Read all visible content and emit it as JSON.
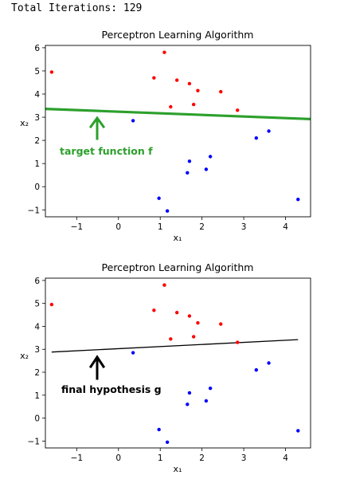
{
  "header": {
    "iterations_text": "Total Iterations: 129"
  },
  "chart_data": [
    {
      "type": "scatter",
      "title": "Perceptron Learning Algorithm",
      "xlabel": "x₁",
      "ylabel": "x₂",
      "xlim": [
        -1.75,
        4.6
      ],
      "ylim": [
        -1.3,
        6.1
      ],
      "xticks": [
        -1,
        0,
        1,
        2,
        3,
        4
      ],
      "yticks": [
        -1,
        0,
        1,
        2,
        3,
        4,
        5,
        6
      ],
      "series": [
        {
          "color": "#ff0000",
          "points": [
            [
              -1.6,
              4.95
            ],
            [
              1.1,
              5.8
            ],
            [
              0.85,
              4.7
            ],
            [
              1.4,
              4.6
            ],
            [
              1.7,
              4.45
            ],
            [
              1.9,
              4.15
            ],
            [
              2.45,
              4.1
            ],
            [
              1.25,
              3.45
            ],
            [
              1.8,
              3.55
            ],
            [
              2.85,
              3.3
            ]
          ]
        },
        {
          "color": "#0000ff",
          "points": [
            [
              0.35,
              2.85
            ],
            [
              3.6,
              2.4
            ],
            [
              3.3,
              2.1
            ],
            [
              2.2,
              1.3
            ],
            [
              1.7,
              1.1
            ],
            [
              1.65,
              0.6
            ],
            [
              2.1,
              0.75
            ],
            [
              0.97,
              -0.5
            ],
            [
              1.17,
              -1.05
            ],
            [
              4.3,
              -0.55
            ]
          ]
        }
      ],
      "line": {
        "x": [
          -1.75,
          4.6
        ],
        "y": [
          3.36,
          2.92
        ],
        "color": "#2ca02c",
        "width": 3.2
      },
      "annotation": {
        "text": "target function f",
        "color": "#2ca02c"
      }
    },
    {
      "type": "scatter",
      "title": "Perceptron Learning Algorithm",
      "xlabel": "x₁",
      "ylabel": "x₂",
      "xlim": [
        -1.75,
        4.6
      ],
      "ylim": [
        -1.3,
        6.1
      ],
      "xticks": [
        -1,
        0,
        1,
        2,
        3,
        4
      ],
      "yticks": [
        -1,
        0,
        1,
        2,
        3,
        4,
        5,
        6
      ],
      "series": [
        {
          "color": "#ff0000",
          "points": [
            [
              -1.6,
              4.95
            ],
            [
              1.1,
              5.8
            ],
            [
              0.85,
              4.7
            ],
            [
              1.4,
              4.6
            ],
            [
              1.7,
              4.45
            ],
            [
              1.9,
              4.15
            ],
            [
              2.45,
              4.1
            ],
            [
              1.25,
              3.45
            ],
            [
              1.8,
              3.55
            ],
            [
              2.85,
              3.3
            ]
          ]
        },
        {
          "color": "#0000ff",
          "points": [
            [
              0.35,
              2.85
            ],
            [
              3.6,
              2.4
            ],
            [
              3.3,
              2.1
            ],
            [
              2.2,
              1.3
            ],
            [
              1.7,
              1.1
            ],
            [
              1.65,
              0.6
            ],
            [
              2.1,
              0.75
            ],
            [
              0.97,
              -0.5
            ],
            [
              1.17,
              -1.05
            ],
            [
              4.3,
              -0.55
            ]
          ]
        }
      ],
      "line": {
        "x": [
          -1.6,
          4.3
        ],
        "y": [
          2.88,
          3.42
        ],
        "color": "#000000",
        "width": 1.3
      },
      "annotation": {
        "text": "final hypothesis g",
        "color": "#000000"
      }
    }
  ]
}
